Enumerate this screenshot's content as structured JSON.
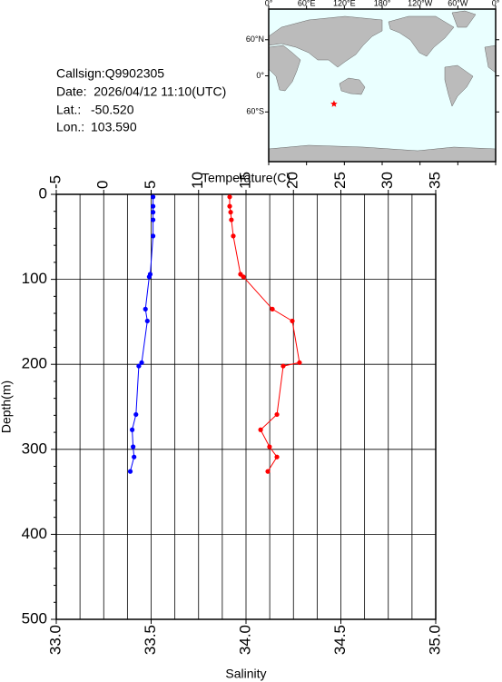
{
  "info": {
    "callsign": "Callsign:Q9902305",
    "date": "Date:  2026/04/12 11:10(UTC)",
    "lat_label": "Lat.:",
    "lat": {
      "value": -50.52,
      "label": "-50.520"
    },
    "lon_label": "Lon.:",
    "lon": {
      "value": 103.59,
      "label": "103.590"
    }
  },
  "map": {
    "projection": "mercator",
    "lonlim": [
      0,
      360
    ],
    "latlim": [
      -85,
      80
    ],
    "lonticks": [
      {
        "value": 0,
        "label": "0°"
      },
      {
        "value": 60,
        "label": "60°E"
      },
      {
        "value": 120,
        "label": "120°E"
      },
      {
        "value": 180,
        "label": "180°"
      },
      {
        "value": 240,
        "label": "120°W"
      },
      {
        "value": 300,
        "label": "60°W"
      },
      {
        "value": 360,
        "label": "0°"
      }
    ],
    "latticks": [
      {
        "value": 60,
        "label": "60°N"
      },
      {
        "value": 0,
        "label": "0°"
      },
      {
        "value": -60,
        "label": "60°S"
      }
    ],
    "marker_color": "#ff0000"
  },
  "chart_data": {
    "type": "line",
    "x_title": "Temperature(C)",
    "x2_title": "Salinity",
    "y_title": "Depth(m)",
    "y": [
      3,
      14,
      21,
      30,
      49,
      94,
      97,
      135,
      149,
      198,
      202,
      259,
      277,
      297,
      309,
      326
    ],
    "ylim": [
      0,
      500
    ],
    "y_reversed": true,
    "yticks": [
      0,
      100,
      200,
      300,
      400,
      500
    ],
    "xlim": [
      -5,
      35
    ],
    "xticks": [
      -5,
      0,
      5,
      10,
      15,
      20,
      25,
      30,
      35
    ],
    "x2lim": [
      33,
      35
    ],
    "x2ticks": [
      {
        "value": 33,
        "label": "33.0"
      },
      {
        "value": 33.5,
        "label": "33.5"
      },
      {
        "value": 34,
        "label": "34.0"
      },
      {
        "value": 34.5,
        "label": "34.5"
      },
      {
        "value": 35,
        "label": "35.0"
      }
    ],
    "grid": true,
    "series": [
      {
        "color": "#0000ff",
        "axis": "x",
        "values": [
          5.2,
          5.2,
          5.2,
          5.2,
          5.2,
          4.9,
          4.8,
          4.4,
          4.6,
          4.0,
          3.7,
          3.4,
          3.0,
          3.1,
          3.2,
          2.8
        ]
      },
      {
        "color": "#ff0000",
        "axis": "x2",
        "values": [
          33.914,
          33.914,
          33.919,
          33.923,
          33.933,
          33.971,
          33.986,
          34.139,
          34.244,
          34.282,
          34.196,
          34.163,
          34.077,
          34.124,
          34.163,
          34.115
        ]
      }
    ]
  }
}
